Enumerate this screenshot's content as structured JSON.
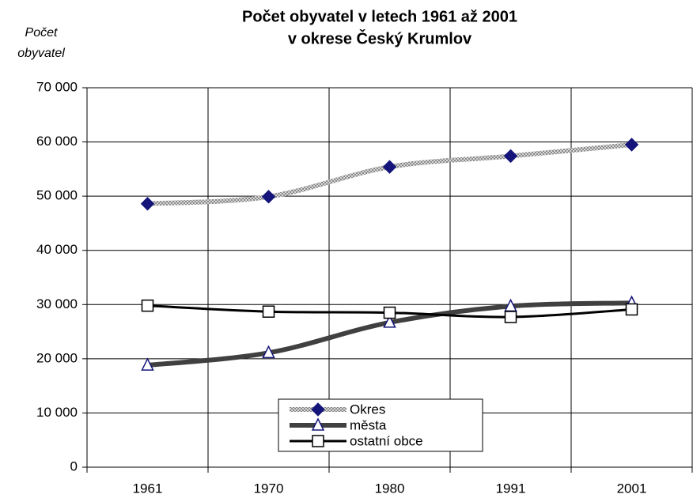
{
  "chart_data": {
    "type": "line",
    "title": [
      "Počet obyvatel v letech 1961 až 2001",
      "v okrese  Český Krumlov"
    ],
    "y_label": [
      "Počet",
      "obyvatel"
    ],
    "categories": [
      "1961",
      "1970",
      "1980",
      "1991",
      "2001"
    ],
    "series": [
      {
        "name": "Okres",
        "color": "#b0b0b0",
        "marker": "diamond",
        "marker_color": "#14147a",
        "values": [
          48600,
          49900,
          55400,
          57400,
          59500
        ]
      },
      {
        "name": "města",
        "color": "#404040",
        "marker": "triangle",
        "marker_color": "#14147a",
        "values": [
          18800,
          21100,
          26700,
          29700,
          30300
        ]
      },
      {
        "name": "ostatní obce",
        "color": "#000000",
        "marker": "square",
        "marker_color": "#000000",
        "values": [
          29800,
          28700,
          28500,
          27700,
          29100
        ]
      }
    ],
    "ylim": [
      0,
      70000
    ],
    "yticks": [
      {
        "value": 0,
        "label": "0"
      },
      {
        "value": 10000,
        "label": "10 000"
      },
      {
        "value": 20000,
        "label": "20 000"
      },
      {
        "value": 30000,
        "label": "30 000"
      },
      {
        "value": 40000,
        "label": "40 000"
      },
      {
        "value": 50000,
        "label": "50 000"
      },
      {
        "value": 60000,
        "label": "60 000"
      },
      {
        "value": 70000,
        "label": "70 000"
      }
    ],
    "grid": true,
    "smooth": true,
    "legend": "bottom"
  }
}
